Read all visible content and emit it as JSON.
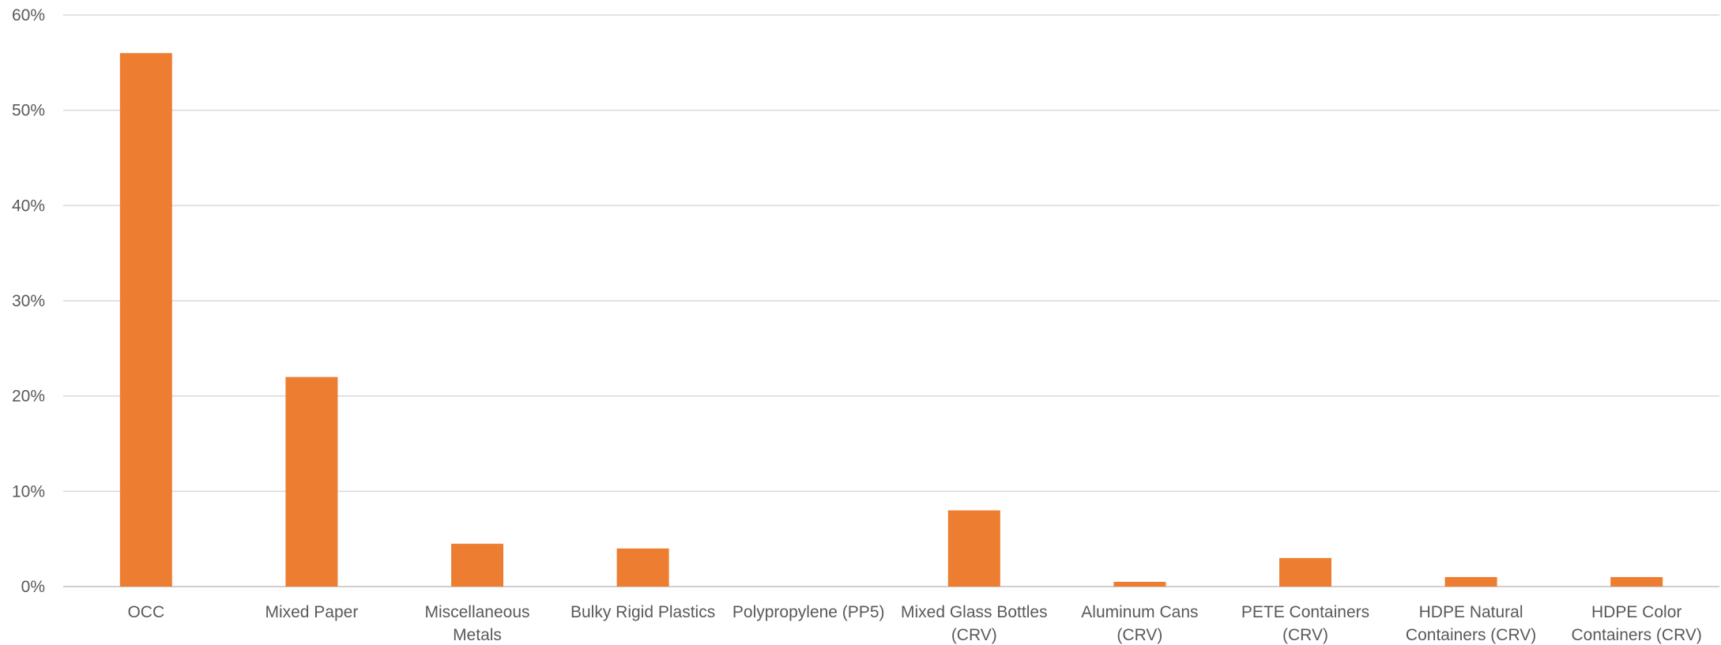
{
  "chart_data": {
    "type": "bar",
    "title": "",
    "xlabel": "",
    "ylabel": "",
    "categories": [
      [
        "OCC"
      ],
      [
        "Mixed Paper"
      ],
      [
        "Miscellaneous",
        "Metals"
      ],
      [
        "Bulky Rigid Plastics"
      ],
      [
        "Polypropylene (PP5)"
      ],
      [
        "Mixed Glass Bottles",
        "(CRV)"
      ],
      [
        "Aluminum Cans",
        "(CRV)"
      ],
      [
        "PETE Containers",
        "(CRV)"
      ],
      [
        "HDPE Natural",
        "Containers (CRV)"
      ],
      [
        "HDPE Color",
        "Containers (CRV)"
      ]
    ],
    "values": [
      56,
      22,
      4.5,
      4,
      0,
      8,
      0.5,
      3,
      1,
      1
    ],
    "ylim": [
      0,
      60
    ],
    "yticks": [
      0,
      10,
      20,
      30,
      40,
      50,
      60
    ],
    "ytick_labels": [
      "0%",
      "10%",
      "20%",
      "30%",
      "40%",
      "50%",
      "60%"
    ],
    "grid": true,
    "legend": "none",
    "bar_color": "#ED7D31"
  }
}
